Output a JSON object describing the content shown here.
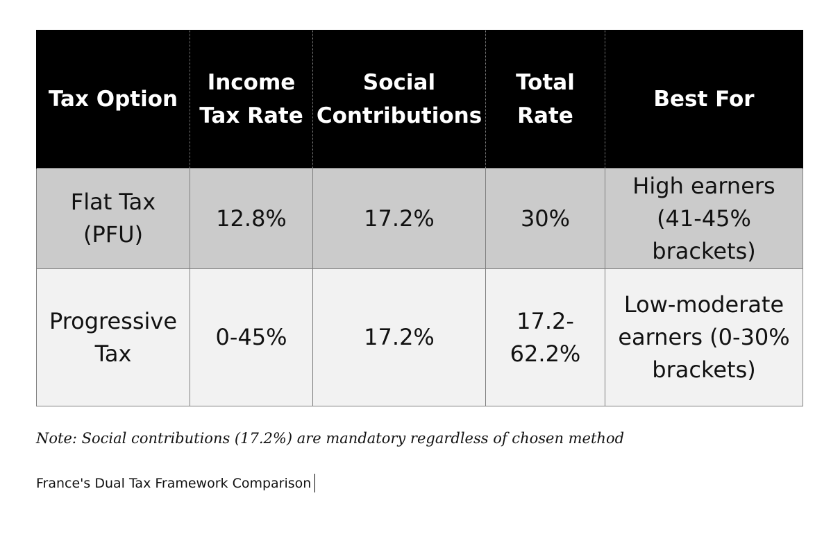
{
  "table": {
    "headers": [
      "Tax Option",
      "Income\nTax Rate",
      "Social\nContributions",
      "Total\nRate",
      "Best For"
    ],
    "rows": [
      [
        "Flat Tax\n(PFU)",
        "12.8%",
        "17.2%",
        "30%",
        "High earners\n(41-45%\nbrackets)"
      ],
      [
        "Progressive\nTax",
        "0-45%",
        "17.2%",
        "17.2-\n62.2%",
        "Low-moderate\nearners (0-30%\nbrackets)"
      ]
    ]
  },
  "note": "Note: Social contributions (17.2%) are mandatory regardless of chosen method",
  "caption": "France's Dual Tax Framework Comparison",
  "colors": {
    "header_bg": "#000000",
    "header_text": "#ffffff",
    "row_flat_bg": "#cbcbcb",
    "row_progressive_bg": "#f2f2f2"
  }
}
